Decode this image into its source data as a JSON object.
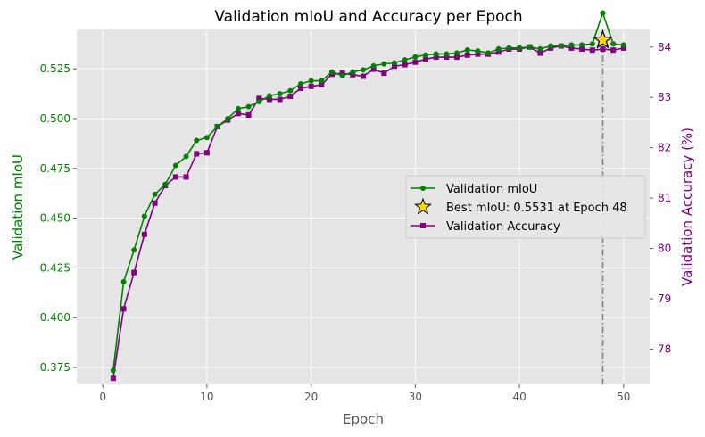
{
  "chart_data": {
    "type": "line",
    "title": "Validation mIoU and Accuracy per Epoch",
    "xlabel": "Epoch",
    "ylabel_left": "Validation mIoU",
    "ylabel_right": "Validation Accuracy (%)",
    "xlim": [
      -2.5,
      52.5
    ],
    "ylim_left": [
      0.3665,
      0.5448
    ],
    "ylim_right": [
      77.3,
      84.35
    ],
    "x_ticks": [
      0,
      10,
      20,
      30,
      40,
      50
    ],
    "y_left_ticks": [
      0.375,
      0.4,
      0.425,
      0.45,
      0.475,
      0.5,
      0.525
    ],
    "y_left_tick_labels": [
      "0.375",
      "0.400",
      "0.425",
      "0.450",
      "0.475",
      "0.500",
      "0.525"
    ],
    "y_right_ticks": [
      78,
      79,
      80,
      81,
      82,
      83,
      84
    ],
    "y_right_tick_labels": [
      "78",
      "79",
      "80",
      "81",
      "82",
      "83",
      "84"
    ],
    "grid": true,
    "legend_position": "center-right",
    "colors": {
      "miou": "#008000",
      "accuracy": "#800080",
      "best_marker": "#FFD700",
      "vline": "#808080",
      "background": "#E5E5E5"
    },
    "x": [
      1,
      2,
      3,
      4,
      5,
      6,
      7,
      8,
      9,
      10,
      11,
      12,
      13,
      14,
      15,
      16,
      17,
      18,
      19,
      20,
      21,
      22,
      23,
      24,
      25,
      26,
      27,
      28,
      29,
      30,
      31,
      32,
      33,
      34,
      35,
      36,
      37,
      38,
      39,
      40,
      41,
      42,
      43,
      44,
      45,
      46,
      47,
      48,
      49,
      50
    ],
    "series": [
      {
        "name": "Validation mIoU",
        "axis": "left",
        "marker": "circle",
        "values": [
          0.3735,
          0.418,
          0.434,
          0.451,
          0.462,
          0.467,
          0.4765,
          0.481,
          0.489,
          0.4905,
          0.496,
          0.5,
          0.505,
          0.506,
          0.5085,
          0.5115,
          0.5125,
          0.514,
          0.5175,
          0.519,
          0.519,
          0.5235,
          0.5215,
          0.5235,
          0.5245,
          0.5265,
          0.5275,
          0.528,
          0.5295,
          0.531,
          0.532,
          0.5325,
          0.5325,
          0.533,
          0.5345,
          0.534,
          0.533,
          0.535,
          0.5355,
          0.5355,
          0.536,
          0.535,
          0.5365,
          0.5365,
          0.537,
          0.537,
          0.5375,
          0.5531,
          0.5375,
          0.537
        ]
      },
      {
        "name": "Validation Accuracy",
        "axis": "right",
        "marker": "square",
        "values": [
          77.42,
          78.8,
          79.52,
          80.28,
          80.9,
          81.25,
          81.42,
          81.42,
          81.88,
          81.9,
          82.42,
          82.55,
          82.68,
          82.65,
          82.98,
          82.96,
          82.96,
          83.02,
          83.18,
          83.22,
          83.25,
          83.46,
          83.48,
          83.45,
          83.42,
          83.56,
          83.48,
          83.62,
          83.65,
          83.7,
          83.76,
          83.8,
          83.8,
          83.8,
          83.84,
          83.86,
          83.86,
          83.9,
          83.96,
          83.96,
          84.0,
          83.88,
          83.98,
          84.02,
          83.98,
          83.96,
          83.94,
          83.96,
          83.94,
          83.98
        ]
      }
    ],
    "best": {
      "label": "Best mIoU: 0.5531 at Epoch 48",
      "epoch": 48,
      "value": 0.5531
    }
  }
}
